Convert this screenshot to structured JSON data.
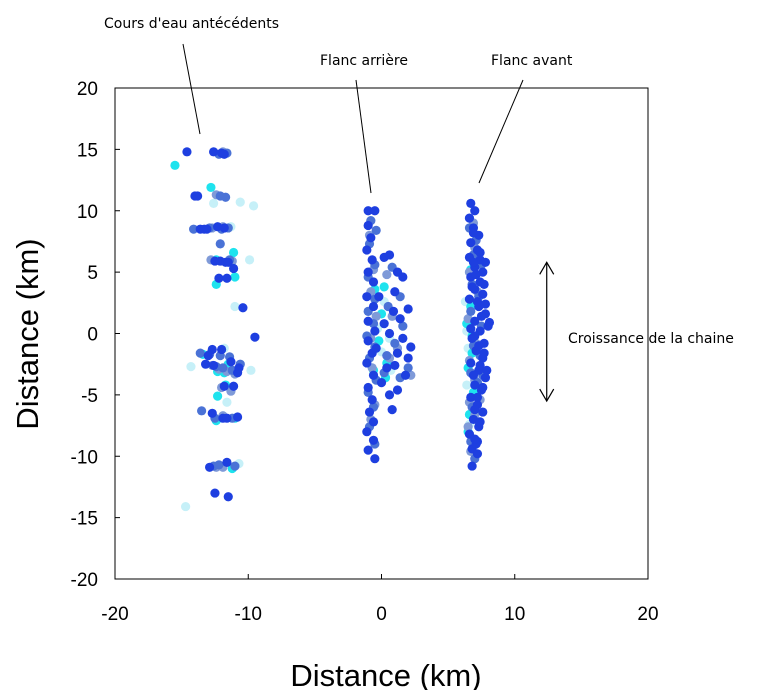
{
  "chart_data": {
    "type": "scatter",
    "xlabel": "Distance (km)",
    "ylabel": "Distance (km)",
    "xlim": [
      -20,
      20
    ],
    "ylim": [
      -20,
      20
    ],
    "xticks": [
      -20,
      -10,
      0,
      10,
      20
    ],
    "yticks": [
      -20,
      -15,
      -10,
      -5,
      0,
      5,
      10,
      15,
      20
    ],
    "grid": false,
    "colors": [
      "#1e3fe0",
      "#4a72d6",
      "#7f9ad8",
      "#1ee3ee",
      "#c6f0f8"
    ],
    "annotations": {
      "antecedent": "Cours d'eau antécédents",
      "back_limb": "Flanc arrière",
      "front_limb": "Flanc avant",
      "growth": "Croissance de la chaine"
    },
    "growth_arrow": {
      "x": 12.4,
      "y_from": -5.5,
      "y_to": 5.8
    },
    "series": [
      {
        "values": [
          [
            -14.6,
            14.8
          ],
          [
            -12.6,
            14.8
          ],
          [
            -12.0,
            14.7
          ],
          [
            -11.8,
            14.6
          ],
          [
            -14.0,
            11.2
          ],
          [
            -13.8,
            11.2
          ],
          [
            -13.6,
            8.5
          ],
          [
            -13.3,
            8.5
          ],
          [
            -13.1,
            8.5
          ],
          [
            -12.3,
            8.7
          ],
          [
            -11.8,
            8.6
          ],
          [
            -12.5,
            5.9
          ],
          [
            -12.1,
            5.9
          ],
          [
            -11.7,
            5.8
          ],
          [
            -11.5,
            5.8
          ],
          [
            -11.1,
            5.3
          ],
          [
            -12.2,
            4.5
          ],
          [
            -11.6,
            4.5
          ],
          [
            -10.4,
            2.1
          ],
          [
            -12.7,
            -1.3
          ],
          [
            -12.0,
            -1.3
          ],
          [
            -11.3,
            -2.3
          ],
          [
            -10.8,
            -3.2
          ],
          [
            -13.2,
            -2.5
          ],
          [
            -12.6,
            -2.6
          ],
          [
            -11.1,
            -4.3
          ],
          [
            -11.8,
            -4.3
          ],
          [
            -12.7,
            -6.5
          ],
          [
            -11.9,
            -6.9
          ],
          [
            -11.6,
            -6.9
          ],
          [
            -10.8,
            -6.8
          ],
          [
            -12.9,
            -10.9
          ],
          [
            -11.6,
            -10.5
          ],
          [
            -12.5,
            -13.0
          ],
          [
            -11.5,
            -13.3
          ],
          [
            -9.5,
            -0.3
          ],
          [
            -10.7,
            -2.8
          ],
          [
            -13.0,
            -1.8
          ]
        ]
      },
      {
        "values": [
          [
            -12.2,
            14.6
          ],
          [
            -11.6,
            14.7
          ],
          [
            -12.1,
            11.2
          ],
          [
            -11.7,
            11.1
          ],
          [
            -14.1,
            8.5
          ],
          [
            -12.9,
            8.6
          ],
          [
            -12.0,
            8.5
          ],
          [
            -11.5,
            8.6
          ],
          [
            -12.1,
            7.3
          ],
          [
            -11.4,
            6.0
          ],
          [
            -13.6,
            -1.6
          ],
          [
            -12.9,
            -1.7
          ],
          [
            -12.1,
            -1.8
          ],
          [
            -11.4,
            -1.9
          ],
          [
            -12.4,
            -2.7
          ],
          [
            -11.9,
            -2.8
          ],
          [
            -11.2,
            -3.0
          ],
          [
            -13.5,
            -6.3
          ],
          [
            -12.5,
            -6.9
          ],
          [
            -11.2,
            -6.9
          ],
          [
            -12.6,
            -10.8
          ],
          [
            -12.2,
            -10.7
          ],
          [
            -11.0,
            -10.8
          ],
          [
            -10.6,
            -2.5
          ]
        ]
      },
      {
        "values": [
          [
            -11.9,
            14.8
          ],
          [
            -12.4,
            11.3
          ],
          [
            -12.7,
            8.6
          ],
          [
            -11.9,
            8.7
          ],
          [
            -12.8,
            6.0
          ],
          [
            -11.2,
            5.9
          ],
          [
            -12.7,
            -2.6
          ],
          [
            -12.2,
            -2.9
          ],
          [
            -11.6,
            -3.1
          ],
          [
            -11.0,
            -3.3
          ],
          [
            -12.0,
            -4.4
          ],
          [
            -11.3,
            -4.7
          ],
          [
            -11.9,
            -6.7
          ],
          [
            -12.4,
            -10.9
          ],
          [
            -11.9,
            -10.9
          ]
        ]
      },
      {
        "values": [
          [
            -15.5,
            13.7
          ],
          [
            -12.8,
            11.9
          ],
          [
            -12.4,
            6.0
          ],
          [
            -11.1,
            6.6
          ],
          [
            -12.4,
            4.0
          ],
          [
            -11.0,
            4.6
          ],
          [
            -13.4,
            -1.7
          ],
          [
            -12.3,
            -3.1
          ],
          [
            -11.8,
            -3.2
          ],
          [
            -11.5,
            -2.5
          ],
          [
            -11.7,
            -4.2
          ],
          [
            -12.3,
            -5.1
          ],
          [
            -11.0,
            -6.9
          ],
          [
            -11.2,
            -11.0
          ],
          [
            -12.4,
            -7.1
          ]
        ]
      },
      {
        "values": [
          [
            -10.6,
            10.7
          ],
          [
            -9.6,
            10.4
          ],
          [
            -12.6,
            10.6
          ],
          [
            -11.3,
            8.7
          ],
          [
            -9.9,
            6.0
          ],
          [
            -11.0,
            2.2
          ],
          [
            -11.8,
            -1.2
          ],
          [
            -14.3,
            -2.7
          ],
          [
            -9.8,
            -3.0
          ],
          [
            -11.6,
            -5.6
          ],
          [
            -14.7,
            -14.1
          ],
          [
            -10.7,
            -10.6
          ]
        ]
      },
      {
        "values": [
          [
            -1.0,
            10.0
          ],
          [
            -0.5,
            10.0
          ],
          [
            -1.0,
            8.8
          ],
          [
            -0.8,
            7.8
          ],
          [
            -1.1,
            6.8
          ],
          [
            -0.7,
            6.0
          ],
          [
            -1.0,
            5.0
          ],
          [
            -0.6,
            4.2
          ],
          [
            -1.1,
            3.0
          ],
          [
            -0.6,
            2.2
          ],
          [
            -1.0,
            1.0
          ],
          [
            -0.5,
            0.2
          ],
          [
            -1.0,
            -0.6
          ],
          [
            -0.7,
            -1.6
          ],
          [
            -1.1,
            -2.4
          ],
          [
            -0.6,
            -3.4
          ],
          [
            -1.0,
            -4.4
          ],
          [
            -0.7,
            -5.4
          ],
          [
            -0.9,
            -6.4
          ],
          [
            -0.6,
            -7.2
          ],
          [
            -1.1,
            -8.0
          ],
          [
            -0.6,
            -8.7
          ],
          [
            -1.0,
            -9.5
          ],
          [
            -0.5,
            -10.2
          ],
          [
            0.2,
            6.2
          ],
          [
            0.6,
            6.4
          ],
          [
            1.2,
            5.0
          ],
          [
            1.6,
            4.6
          ],
          [
            1.0,
            3.4
          ],
          [
            2.0,
            2.0
          ],
          [
            1.4,
            1.2
          ],
          [
            0.6,
            0.0
          ],
          [
            1.6,
            -0.4
          ],
          [
            2.2,
            -1.1
          ],
          [
            1.2,
            -1.6
          ],
          [
            2.0,
            -2.0
          ],
          [
            1.0,
            -2.6
          ],
          [
            1.8,
            -3.4
          ],
          [
            1.2,
            -4.6
          ],
          [
            0.6,
            -5.0
          ],
          [
            0.8,
            -6.2
          ],
          [
            0.0,
            -4.0
          ],
          [
            0.4,
            -2.8
          ],
          [
            0.2,
            0.8
          ],
          [
            0.9,
            1.8
          ],
          [
            -0.2,
            3.0
          ],
          [
            -0.4,
            -1.2
          ]
        ]
      },
      {
        "values": [
          [
            -0.8,
            9.2
          ],
          [
            -0.4,
            8.4
          ],
          [
            -0.9,
            7.3
          ],
          [
            -0.5,
            5.6
          ],
          [
            -1.0,
            4.6
          ],
          [
            -0.5,
            2.8
          ],
          [
            -1.0,
            1.8
          ],
          [
            -0.6,
            0.8
          ],
          [
            -1.1,
            -0.2
          ],
          [
            -0.5,
            -1.1
          ],
          [
            -0.9,
            -2.0
          ],
          [
            -0.4,
            -3.8
          ],
          [
            -1.0,
            -4.8
          ],
          [
            -0.6,
            -6.0
          ],
          [
            -0.9,
            -7.6
          ],
          [
            -0.5,
            -9.0
          ],
          [
            0.8,
            5.4
          ],
          [
            1.4,
            3.0
          ],
          [
            0.5,
            2.2
          ],
          [
            1.6,
            0.6
          ],
          [
            1.0,
            -0.8
          ],
          [
            2.0,
            -2.8
          ],
          [
            1.4,
            -3.6
          ],
          [
            0.4,
            -1.8
          ],
          [
            0.2,
            -3.2
          ]
        ]
      },
      {
        "values": [
          [
            -0.9,
            8.0
          ],
          [
            -0.6,
            5.2
          ],
          [
            -0.8,
            3.4
          ],
          [
            -0.4,
            1.4
          ],
          [
            -0.8,
            -0.4
          ],
          [
            -0.7,
            -2.8
          ],
          [
            -0.5,
            -5.8
          ],
          [
            -0.8,
            -7.0
          ],
          [
            0.4,
            4.8
          ],
          [
            0.8,
            1.4
          ],
          [
            1.2,
            -1.2
          ],
          [
            2.2,
            -3.4
          ],
          [
            0.6,
            -2.0
          ]
        ]
      },
      {
        "values": [
          [
            -0.5,
            3.6
          ],
          [
            0.2,
            3.8
          ],
          [
            -0.2,
            -0.6
          ],
          [
            0.4,
            -2.4
          ],
          [
            -0.6,
            -3.0
          ],
          [
            0.0,
            1.6
          ],
          [
            0.3,
            -3.6
          ]
        ]
      },
      {
        "values": [
          [
            0.2,
            2.6
          ],
          [
            0.6,
            -0.4
          ],
          [
            -0.3,
            0.4
          ],
          [
            0.7,
            -3.0
          ],
          [
            0.0,
            -1.5
          ]
        ]
      },
      {
        "values": [
          [
            6.7,
            10.6
          ],
          [
            7.0,
            10.0
          ],
          [
            6.6,
            9.4
          ],
          [
            6.9,
            8.6
          ],
          [
            7.3,
            8.0
          ],
          [
            6.7,
            7.4
          ],
          [
            7.2,
            6.8
          ],
          [
            6.6,
            6.2
          ],
          [
            7.4,
            6.0
          ],
          [
            7.0,
            5.4
          ],
          [
            7.6,
            5.0
          ],
          [
            6.7,
            4.6
          ],
          [
            7.4,
            4.2
          ],
          [
            7.0,
            3.6
          ],
          [
            7.6,
            3.2
          ],
          [
            6.6,
            2.8
          ],
          [
            7.3,
            2.2
          ],
          [
            7.8,
            1.6
          ],
          [
            7.0,
            1.0
          ],
          [
            8.0,
            0.6
          ],
          [
            7.4,
            0.2
          ],
          [
            6.8,
            -0.4
          ],
          [
            7.7,
            -0.8
          ],
          [
            7.1,
            -1.4
          ],
          [
            7.6,
            -2.0
          ],
          [
            6.7,
            -2.4
          ],
          [
            7.3,
            -3.0
          ],
          [
            7.8,
            -3.6
          ],
          [
            7.0,
            -4.2
          ],
          [
            7.5,
            -4.6
          ],
          [
            6.7,
            -5.2
          ],
          [
            7.2,
            -5.8
          ],
          [
            7.6,
            -6.4
          ],
          [
            6.9,
            -7.0
          ],
          [
            7.3,
            -7.6
          ],
          [
            6.6,
            -8.2
          ],
          [
            7.2,
            -8.8
          ],
          [
            6.8,
            -9.4
          ],
          [
            7.2,
            -9.8
          ],
          [
            6.8,
            -10.8
          ],
          [
            7.8,
            5.8
          ],
          [
            7.7,
            4.0
          ],
          [
            8.1,
            0.9
          ],
          [
            7.7,
            -1.6
          ],
          [
            7.6,
            -4.4
          ],
          [
            7.4,
            6.6
          ],
          [
            6.9,
            5.8
          ],
          [
            7.2,
            2.6
          ],
          [
            7.0,
            -0.2
          ],
          [
            6.9,
            -3.4
          ],
          [
            7.0,
            -6.2
          ],
          [
            7.1,
            -9.0
          ],
          [
            6.8,
            3.8
          ],
          [
            7.5,
            1.4
          ],
          [
            7.4,
            -2.6
          ],
          [
            7.2,
            -5.2
          ],
          [
            6.9,
            8.2
          ],
          [
            7.1,
            4.8
          ],
          [
            7.3,
            -1.0
          ],
          [
            7.4,
            -7.2
          ],
          [
            7.8,
            2.4
          ],
          [
            7.9,
            -3.0
          ],
          [
            6.7,
            0.4
          ],
          [
            7.0,
            -8.6
          ]
        ]
      },
      {
        "values": [
          [
            6.6,
            8.6
          ],
          [
            7.1,
            7.6
          ],
          [
            6.9,
            6.4
          ],
          [
            7.5,
            5.6
          ],
          [
            6.8,
            4.0
          ],
          [
            7.3,
            3.0
          ],
          [
            6.7,
            1.8
          ],
          [
            7.5,
            0.6
          ],
          [
            6.9,
            -1.0
          ],
          [
            7.4,
            -1.8
          ],
          [
            6.7,
            -3.2
          ],
          [
            7.2,
            -4.0
          ],
          [
            6.8,
            -6.0
          ],
          [
            7.3,
            -7.2
          ],
          [
            6.7,
            -8.8
          ],
          [
            7.0,
            -10.2
          ],
          [
            7.6,
            -3.4
          ]
        ]
      },
      {
        "values": [
          [
            6.9,
            9.0
          ],
          [
            7.0,
            7.0
          ],
          [
            6.6,
            5.0
          ],
          [
            7.2,
            3.4
          ],
          [
            6.5,
            1.2
          ],
          [
            7.1,
            -0.8
          ],
          [
            6.6,
            -2.2
          ],
          [
            7.0,
            -3.8
          ],
          [
            6.6,
            -5.6
          ],
          [
            7.0,
            -6.6
          ],
          [
            6.7,
            -9.6
          ],
          [
            7.4,
            -5.4
          ],
          [
            6.5,
            -7.6
          ]
        ]
      },
      {
        "values": [
          [
            6.7,
            2.2
          ],
          [
            6.4,
            0.8
          ],
          [
            6.8,
            -1.6
          ],
          [
            6.5,
            -2.8
          ],
          [
            6.9,
            -4.8
          ],
          [
            6.6,
            -6.6
          ],
          [
            6.5,
            -8.0
          ],
          [
            6.7,
            5.2
          ],
          [
            6.8,
            -0.2
          ]
        ]
      },
      {
        "values": [
          [
            6.3,
            2.6
          ],
          [
            6.5,
            -1.2
          ],
          [
            6.4,
            -4.2
          ],
          [
            6.6,
            -7.4
          ],
          [
            6.4,
            0.2
          ]
        ]
      }
    ]
  }
}
